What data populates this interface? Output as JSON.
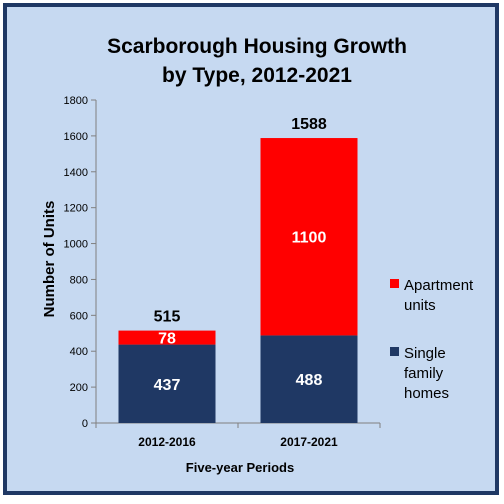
{
  "chart_data": {
    "type": "bar",
    "stacked": true,
    "title_line1": "Scarborough Housing Growth",
    "title_line2": "by Type, 2012-2021",
    "xlabel": "Five-year Periods",
    "ylabel": "Number of Units",
    "categories": [
      "2012-2016",
      "2017-2021"
    ],
    "series": [
      {
        "name": "Single family homes",
        "legend_line1": "Single",
        "legend_line2": "family",
        "legend_line3": "homes",
        "color": "#1f3864",
        "values": [
          437,
          488
        ]
      },
      {
        "name": "Apartment units",
        "legend_line1": "Apartment",
        "legend_line2": "units",
        "color": "#ff0000",
        "values": [
          78,
          1100
        ]
      }
    ],
    "totals": [
      515,
      1588
    ],
    "ylim": [
      0,
      1800
    ],
    "yticks": [
      0,
      200,
      400,
      600,
      800,
      1000,
      1200,
      1400,
      1600,
      1800
    ],
    "grid": false,
    "legend_position": "right"
  }
}
